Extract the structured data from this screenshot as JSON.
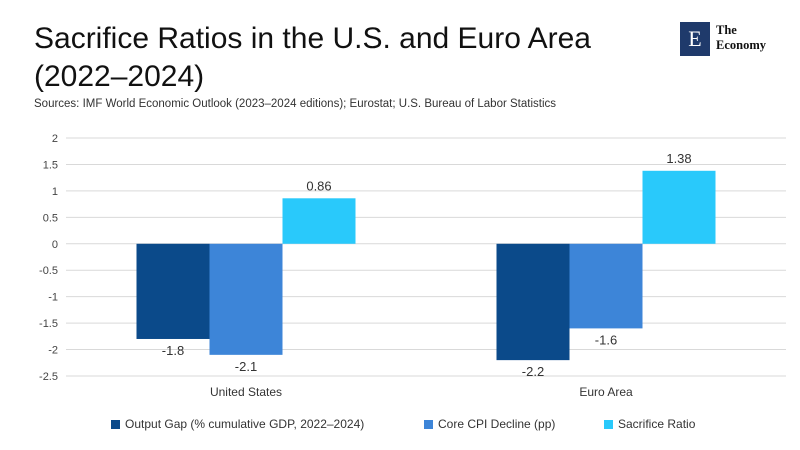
{
  "title": "Sacrifice Ratios in the U.S. and Euro Area (2022–2024)",
  "sources": "Sources: IMF World Economic Outlook (2023–2024 editions); Eurostat; U.S. Bureau of Labor Statistics",
  "logo": {
    "letter": "E",
    "line1": "The",
    "line2": "Economy",
    "color": "#1f3a6b"
  },
  "chart_data": {
    "type": "bar",
    "title": "Sacrifice Ratios in the U.S. and Euro Area (2022–2024)",
    "categories": [
      "United States",
      "Euro Area"
    ],
    "series": [
      {
        "name": "Output Gap (% cumulative GDP, 2022–2024)",
        "values": [
          -1.8,
          -2.2
        ],
        "labels": [
          "-1.8",
          "-2.2"
        ],
        "color": "#0b4a8a"
      },
      {
        "name": "Core CPI Decline (pp)",
        "values": [
          -2.1,
          -1.6
        ],
        "labels": [
          "-2.1",
          "-1.6"
        ],
        "color": "#3d85d8"
      },
      {
        "name": "Sacrifice Ratio",
        "values": [
          0.86,
          1.38
        ],
        "labels": [
          "0.86",
          "1.38"
        ],
        "color": "#29c9fb"
      }
    ],
    "ylim": [
      -2.5,
      2
    ],
    "yticks": [
      2,
      1.5,
      1,
      0.5,
      0,
      -0.5,
      -1,
      -1.5,
      -2,
      -2.5
    ],
    "ytick_labels": [
      "2",
      "1.5",
      "1",
      "0.5",
      "0",
      "-0.5",
      "-1",
      "-1.5",
      "-2",
      "-2.5"
    ],
    "grid": true,
    "legend_position": "bottom"
  }
}
